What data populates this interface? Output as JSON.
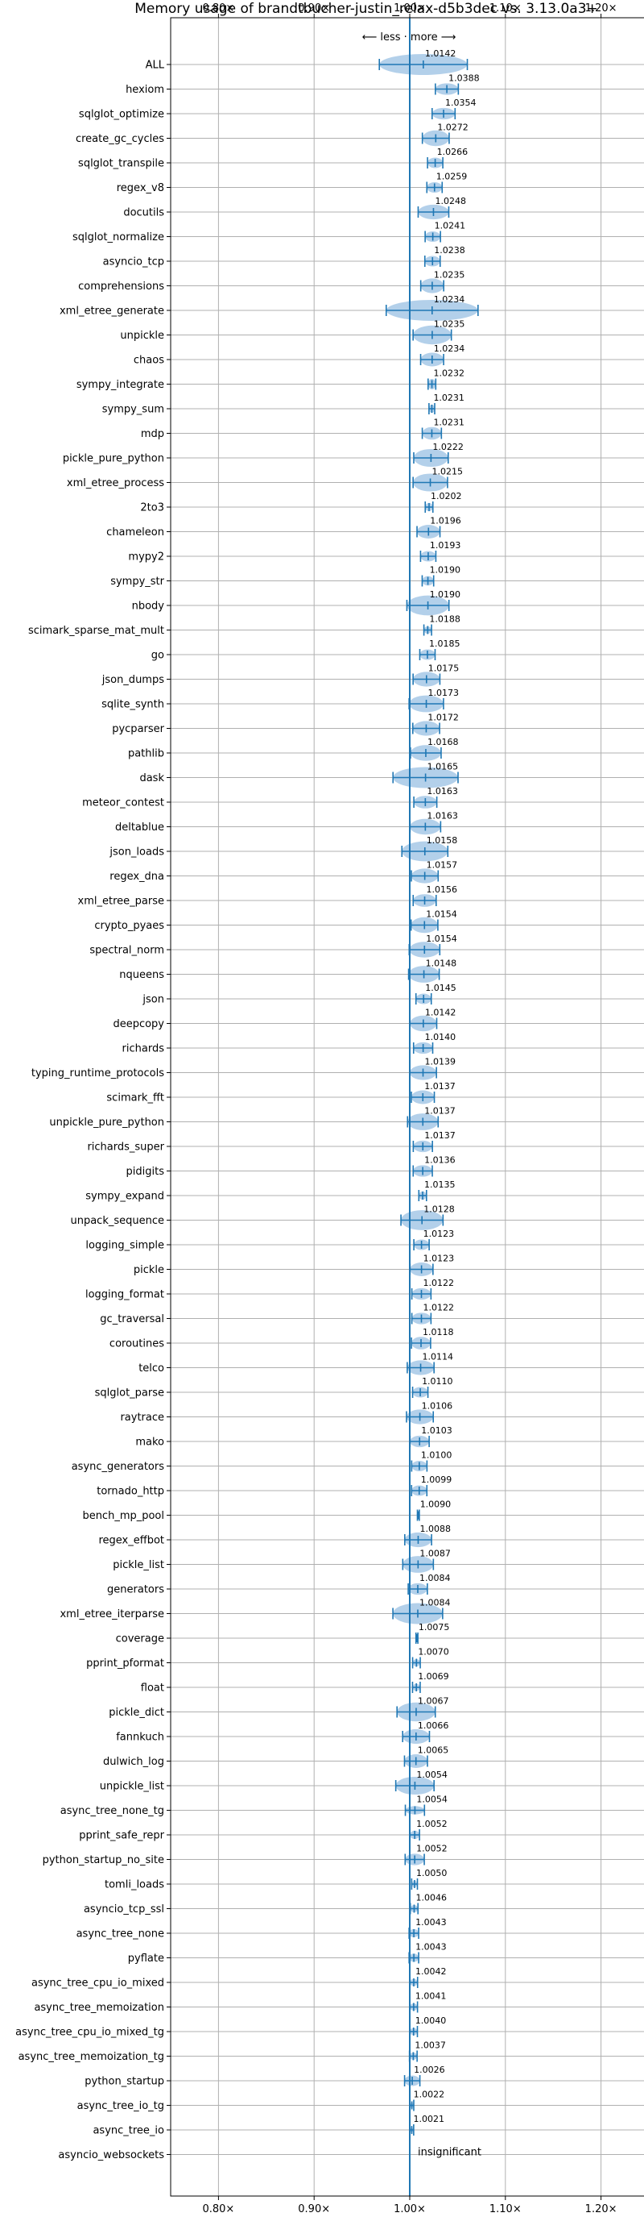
{
  "chart_data": {
    "type": "scatter",
    "title": "Memory usage of brandtbucher-justin_relax-d5b3dec vs. 3.13.0a3+",
    "direction_label": "⟵ less · more ⟶",
    "x_tick_labels": [
      "0.80×",
      "0.90×",
      "1.00×",
      "1.10×",
      "1.20×"
    ],
    "x_ticks": [
      0.8,
      0.9,
      1.0,
      1.1,
      1.2
    ],
    "xlim": [
      0.75,
      1.25
    ],
    "reference_line": 1.0,
    "grid": true,
    "colors": {
      "accent": "#1f77b4",
      "violin": "#a6c8e6",
      "grid": "#b0b0b0"
    },
    "benchmarks": [
      {
        "name": "ALL",
        "value": 1.0142,
        "label": "1.0142",
        "spread": 0.046,
        "width": 1.0
      },
      {
        "name": "hexiom",
        "value": 1.0388,
        "label": "1.0388",
        "spread": 0.012,
        "width": 0.55
      },
      {
        "name": "sqlglot_optimize",
        "value": 1.0354,
        "label": "1.0354",
        "spread": 0.012,
        "width": 0.55
      },
      {
        "name": "create_gc_cycles",
        "value": 1.0272,
        "label": "1.0272",
        "spread": 0.014,
        "width": 0.75
      },
      {
        "name": "sqlglot_transpile",
        "value": 1.0266,
        "label": "1.0266",
        "spread": 0.008,
        "width": 0.5
      },
      {
        "name": "regex_v8",
        "value": 1.0259,
        "label": "1.0259",
        "spread": 0.008,
        "width": 0.5
      },
      {
        "name": "docutils",
        "value": 1.0248,
        "label": "1.0248",
        "spread": 0.016,
        "width": 0.7
      },
      {
        "name": "sqlglot_normalize",
        "value": 1.0241,
        "label": "1.0241",
        "spread": 0.008,
        "width": 0.5
      },
      {
        "name": "asyncio_tcp",
        "value": 1.0238,
        "label": "1.0238",
        "spread": 0.008,
        "width": 0.5
      },
      {
        "name": "comprehensions",
        "value": 1.0235,
        "label": "1.0235",
        "spread": 0.012,
        "width": 0.7
      },
      {
        "name": "xml_etree_generate",
        "value": 1.0234,
        "label": "1.0234",
        "spread": 0.048,
        "width": 1.0
      },
      {
        "name": "unpickle",
        "value": 1.0235,
        "label": "1.0235",
        "spread": 0.02,
        "width": 0.9
      },
      {
        "name": "chaos",
        "value": 1.0234,
        "label": "1.0234",
        "spread": 0.012,
        "width": 0.65
      },
      {
        "name": "sympy_integrate",
        "value": 1.0232,
        "label": "1.0232",
        "spread": 0.004,
        "width": 0.5
      },
      {
        "name": "sympy_sum",
        "value": 1.0231,
        "label": "1.0231",
        "spread": 0.003,
        "width": 0.4
      },
      {
        "name": "mdp",
        "value": 1.0231,
        "label": "1.0231",
        "spread": 0.01,
        "width": 0.6
      },
      {
        "name": "pickle_pure_python",
        "value": 1.0222,
        "label": "1.0222",
        "spread": 0.018,
        "width": 0.85
      },
      {
        "name": "xml_etree_process",
        "value": 1.0215,
        "label": "1.0215",
        "spread": 0.018,
        "width": 0.85
      },
      {
        "name": "2to3",
        "value": 1.0202,
        "label": "1.0202",
        "spread": 0.004,
        "width": 0.4
      },
      {
        "name": "chameleon",
        "value": 1.0196,
        "label": "1.0196",
        "spread": 0.012,
        "width": 0.65
      },
      {
        "name": "mypy2",
        "value": 1.0193,
        "label": "1.0193",
        "spread": 0.008,
        "width": 0.5
      },
      {
        "name": "sympy_str",
        "value": 1.019,
        "label": "1.0190",
        "spread": 0.006,
        "width": 0.45
      },
      {
        "name": "nbody",
        "value": 1.019,
        "label": "1.0190",
        "spread": 0.022,
        "width": 0.95
      },
      {
        "name": "scimark_sparse_mat_mult",
        "value": 1.0188,
        "label": "1.0188",
        "spread": 0.004,
        "width": 0.35
      },
      {
        "name": "go",
        "value": 1.0185,
        "label": "1.0185",
        "spread": 0.008,
        "width": 0.5
      },
      {
        "name": "json_dumps",
        "value": 1.0175,
        "label": "1.0175",
        "spread": 0.014,
        "width": 0.7
      },
      {
        "name": "sqlite_synth",
        "value": 1.0173,
        "label": "1.0173",
        "spread": 0.018,
        "width": 0.8
      },
      {
        "name": "pycparser",
        "value": 1.0172,
        "label": "1.0172",
        "spread": 0.014,
        "width": 0.7
      },
      {
        "name": "pathlib",
        "value": 1.0168,
        "label": "1.0168",
        "spread": 0.016,
        "width": 0.75
      },
      {
        "name": "dask",
        "value": 1.0165,
        "label": "1.0165",
        "spread": 0.034,
        "width": 1.0
      },
      {
        "name": "meteor_contest",
        "value": 1.0163,
        "label": "1.0163",
        "spread": 0.012,
        "width": 0.6
      },
      {
        "name": "deltablue",
        "value": 1.0163,
        "label": "1.0163",
        "spread": 0.016,
        "width": 0.75
      },
      {
        "name": "json_loads",
        "value": 1.0158,
        "label": "1.0158",
        "spread": 0.024,
        "width": 0.95
      },
      {
        "name": "regex_dna",
        "value": 1.0157,
        "label": "1.0157",
        "spread": 0.014,
        "width": 0.7
      },
      {
        "name": "xml_etree_parse",
        "value": 1.0156,
        "label": "1.0156",
        "spread": 0.012,
        "width": 0.6
      },
      {
        "name": "crypto_pyaes",
        "value": 1.0154,
        "label": "1.0154",
        "spread": 0.014,
        "width": 0.75
      },
      {
        "name": "spectral_norm",
        "value": 1.0154,
        "label": "1.0154",
        "spread": 0.016,
        "width": 0.75
      },
      {
        "name": "nqueens",
        "value": 1.0148,
        "label": "1.0148",
        "spread": 0.016,
        "width": 0.8
      },
      {
        "name": "json",
        "value": 1.0145,
        "label": "1.0145",
        "spread": 0.008,
        "width": 0.5
      },
      {
        "name": "deepcopy",
        "value": 1.0142,
        "label": "1.0142",
        "spread": 0.014,
        "width": 0.75
      },
      {
        "name": "richards",
        "value": 1.014,
        "label": "1.0140",
        "spread": 0.01,
        "width": 0.55
      },
      {
        "name": "typing_runtime_protocols",
        "value": 1.0139,
        "label": "1.0139",
        "spread": 0.014,
        "width": 0.7
      },
      {
        "name": "scimark_fft",
        "value": 1.0137,
        "label": "1.0137",
        "spread": 0.012,
        "width": 0.65
      },
      {
        "name": "unpickle_pure_python",
        "value": 1.0137,
        "label": "1.0137",
        "spread": 0.016,
        "width": 0.8
      },
      {
        "name": "richards_super",
        "value": 1.0137,
        "label": "1.0137",
        "spread": 0.01,
        "width": 0.55
      },
      {
        "name": "pidigits",
        "value": 1.0136,
        "label": "1.0136",
        "spread": 0.01,
        "width": 0.55
      },
      {
        "name": "sympy_expand",
        "value": 1.0135,
        "label": "1.0135",
        "spread": 0.004,
        "width": 0.4
      },
      {
        "name": "unpack_sequence",
        "value": 1.0128,
        "label": "1.0128",
        "spread": 0.022,
        "width": 0.95
      },
      {
        "name": "logging_simple",
        "value": 1.0123,
        "label": "1.0123",
        "spread": 0.008,
        "width": 0.5
      },
      {
        "name": "pickle",
        "value": 1.0123,
        "label": "1.0123",
        "spread": 0.012,
        "width": 0.65
      },
      {
        "name": "logging_format",
        "value": 1.0122,
        "label": "1.0122",
        "spread": 0.01,
        "width": 0.55
      },
      {
        "name": "gc_traversal",
        "value": 1.0122,
        "label": "1.0122",
        "spread": 0.01,
        "width": 0.55
      },
      {
        "name": "coroutines",
        "value": 1.0118,
        "label": "1.0118",
        "spread": 0.01,
        "width": 0.6
      },
      {
        "name": "telco",
        "value": 1.0114,
        "label": "1.0114",
        "spread": 0.014,
        "width": 0.7
      },
      {
        "name": "sqlglot_parse",
        "value": 1.011,
        "label": "1.0110",
        "spread": 0.008,
        "width": 0.5
      },
      {
        "name": "raytrace",
        "value": 1.0106,
        "label": "1.0106",
        "spread": 0.014,
        "width": 0.7
      },
      {
        "name": "mako",
        "value": 1.0103,
        "label": "1.0103",
        "spread": 0.01,
        "width": 0.55
      },
      {
        "name": "async_generators",
        "value": 1.01,
        "label": "1.0100",
        "spread": 0.008,
        "width": 0.5
      },
      {
        "name": "tornado_http",
        "value": 1.0099,
        "label": "1.0099",
        "spread": 0.008,
        "width": 0.5
      },
      {
        "name": "bench_mp_pool",
        "value": 1.009,
        "label": "1.0090",
        "spread": 0.001,
        "width": 0.1
      },
      {
        "name": "regex_effbot",
        "value": 1.0088,
        "label": "1.0088",
        "spread": 0.014,
        "width": 0.7
      },
      {
        "name": "pickle_list",
        "value": 1.0087,
        "label": "1.0087",
        "spread": 0.016,
        "width": 0.8
      },
      {
        "name": "generators",
        "value": 1.0084,
        "label": "1.0084",
        "spread": 0.01,
        "width": 0.55
      },
      {
        "name": "xml_etree_iterparse",
        "value": 1.0084,
        "label": "1.0084",
        "spread": 0.026,
        "width": 1.0
      },
      {
        "name": "coverage",
        "value": 1.0075,
        "label": "1.0075",
        "spread": 0.001,
        "width": 0.1
      },
      {
        "name": "pprint_pformat",
        "value": 1.007,
        "label": "1.0070",
        "spread": 0.004,
        "width": 0.35
      },
      {
        "name": "float",
        "value": 1.0069,
        "label": "1.0069",
        "spread": 0.004,
        "width": 0.35
      },
      {
        "name": "pickle_dict",
        "value": 1.0067,
        "label": "1.0067",
        "spread": 0.02,
        "width": 0.9
      },
      {
        "name": "fannkuch",
        "value": 1.0066,
        "label": "1.0066",
        "spread": 0.014,
        "width": 0.7
      },
      {
        "name": "dulwich_log",
        "value": 1.0065,
        "label": "1.0065",
        "spread": 0.012,
        "width": 0.65
      },
      {
        "name": "unpickle_list",
        "value": 1.0054,
        "label": "1.0054",
        "spread": 0.02,
        "width": 0.85
      },
      {
        "name": "async_tree_none_tg",
        "value": 1.0054,
        "label": "1.0054",
        "spread": 0.01,
        "width": 0.4
      },
      {
        "name": "pprint_safe_repr",
        "value": 1.0052,
        "label": "1.0052",
        "spread": 0.005,
        "width": 0.4
      },
      {
        "name": "python_startup_no_site",
        "value": 1.0052,
        "label": "1.0052",
        "spread": 0.01,
        "width": 0.55
      },
      {
        "name": "tomli_loads",
        "value": 1.005,
        "label": "1.0050",
        "spread": 0.003,
        "width": 0.3
      },
      {
        "name": "asyncio_tcp_ssl",
        "value": 1.0046,
        "label": "1.0046",
        "spread": 0.004,
        "width": 0.35
      },
      {
        "name": "async_tree_none",
        "value": 1.0043,
        "label": "1.0043",
        "spread": 0.005,
        "width": 0.4
      },
      {
        "name": "pyflate",
        "value": 1.0043,
        "label": "1.0043",
        "spread": 0.005,
        "width": 0.4
      },
      {
        "name": "async_tree_cpu_io_mixed",
        "value": 1.0042,
        "label": "1.0042",
        "spread": 0.004,
        "width": 0.35
      },
      {
        "name": "async_tree_memoization",
        "value": 1.0041,
        "label": "1.0041",
        "spread": 0.004,
        "width": 0.35
      },
      {
        "name": "async_tree_cpu_io_mixed_tg",
        "value": 1.004,
        "label": "1.0040",
        "spread": 0.004,
        "width": 0.35
      },
      {
        "name": "async_tree_memoization_tg",
        "value": 1.0037,
        "label": "1.0037",
        "spread": 0.004,
        "width": 0.35
      },
      {
        "name": "python_startup",
        "value": 1.0026,
        "label": "1.0026",
        "spread": 0.008,
        "width": 0.5
      },
      {
        "name": "async_tree_io_tg",
        "value": 1.0022,
        "label": "1.0022",
        "spread": 0.002,
        "width": 0.25
      },
      {
        "name": "async_tree_io",
        "value": 1.0021,
        "label": "1.0021",
        "spread": 0.002,
        "width": 0.25
      },
      {
        "name": "asyncio_websockets",
        "value": null,
        "label": "insignificant",
        "spread": 0,
        "width": 0
      }
    ]
  }
}
